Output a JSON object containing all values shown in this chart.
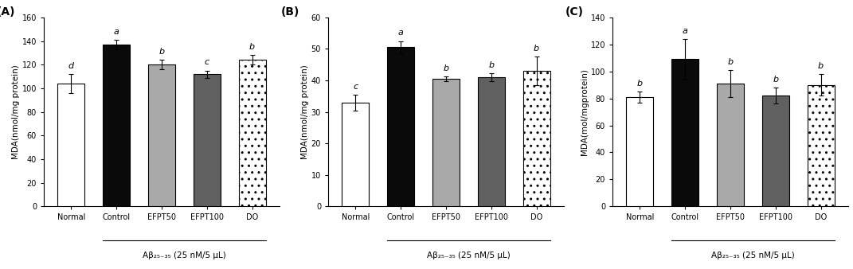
{
  "panels": [
    {
      "label": "(A)",
      "ylabel": "MDA(nmol/mg protein)",
      "ylim": [
        0,
        160
      ],
      "yticks": [
        0,
        20,
        40,
        60,
        80,
        100,
        120,
        140,
        160
      ],
      "categories": [
        "Normal",
        "Control",
        "EFPT50",
        "EFPT100",
        "DO"
      ],
      "values": [
        104,
        137,
        120,
        112,
        124
      ],
      "errors": [
        8,
        4,
        4,
        3,
        4
      ],
      "sig_labels": [
        "d",
        "a",
        "b",
        "c",
        "b"
      ],
      "bar_colors": [
        "white",
        "black",
        "gray",
        "dimgray",
        "hatched"
      ]
    },
    {
      "label": "(B)",
      "ylabel": "MDA(nmol/mg protein)",
      "ylim": [
        0,
        60
      ],
      "yticks": [
        0,
        10,
        20,
        30,
        40,
        50,
        60
      ],
      "categories": [
        "Normal",
        "Control",
        "EFPT50",
        "EFPT100",
        "DO"
      ],
      "values": [
        33,
        50.5,
        40.5,
        41,
        43
      ],
      "errors": [
        2.5,
        2,
        0.7,
        1.2,
        4.5
      ],
      "sig_labels": [
        "c",
        "a",
        "b",
        "b",
        "b"
      ],
      "bar_colors": [
        "white",
        "black",
        "gray",
        "dimgray",
        "hatched"
      ]
    },
    {
      "label": "(C)",
      "ylabel": "MDA(mol/mgprotein)",
      "ylim": [
        0,
        140
      ],
      "yticks": [
        0,
        20,
        40,
        60,
        80,
        100,
        120,
        140
      ],
      "categories": [
        "Normal",
        "Control",
        "EFPT50",
        "EFPT100",
        "DO"
      ],
      "values": [
        81,
        109,
        91,
        82,
        90
      ],
      "errors": [
        4,
        15,
        10,
        6,
        8
      ],
      "sig_labels": [
        "b",
        "a",
        "b",
        "b",
        "b"
      ],
      "bar_colors": [
        "white",
        "black",
        "gray",
        "dimgray",
        "hatched"
      ]
    }
  ],
  "xlabel_common": "Aβ₂₅₋₃₅ (25 nM/5 μL)",
  "bar_width": 0.6,
  "colors": {
    "white": "#FFFFFF",
    "black": "#0a0a0a",
    "gray": "#A9A9A9",
    "dimgray": "#606060"
  },
  "fontsize_label": 7.5,
  "fontsize_tick": 7.0,
  "fontsize_sig": 8.0,
  "fontsize_panel": 10
}
